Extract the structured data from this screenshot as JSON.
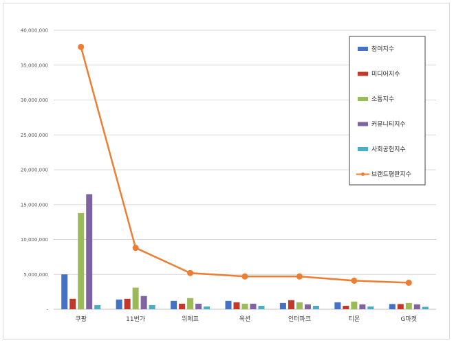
{
  "chart_data": {
    "type": "bar",
    "title": "",
    "xlabel": "",
    "ylabel": "",
    "ylim": [
      0,
      40000000
    ],
    "yticks": [
      0,
      5000000,
      10000000,
      15000000,
      20000000,
      25000000,
      30000000,
      35000000,
      40000000
    ],
    "ytick_labels": [
      "-",
      "5,000,000",
      "10,000,000",
      "15,000,000",
      "20,000,000",
      "25,000,000",
      "30,000,000",
      "35,000,000",
      "40,000,000"
    ],
    "grid": true,
    "legend_position": "top-right",
    "categories": [
      "쿠팡",
      "11번가",
      "위메프",
      "옥션",
      "인터파크",
      "티몬",
      "G마켓"
    ],
    "series": [
      {
        "name": "참여지수",
        "kind": "bar",
        "color": "#4472c4",
        "values": [
          5000000,
          1400000,
          1200000,
          1200000,
          900000,
          1000000,
          750000
        ]
      },
      {
        "name": "미디어지수",
        "kind": "bar",
        "color": "#c0392b",
        "values": [
          1500000,
          1500000,
          800000,
          1000000,
          1300000,
          500000,
          750000
        ]
      },
      {
        "name": "소통지수",
        "kind": "bar",
        "color": "#9bbb59",
        "values": [
          13800000,
          3100000,
          1600000,
          800000,
          1000000,
          1100000,
          900000
        ]
      },
      {
        "name": "커뮤니티지수",
        "kind": "bar",
        "color": "#8064a2",
        "values": [
          16500000,
          1900000,
          800000,
          800000,
          700000,
          700000,
          700000
        ]
      },
      {
        "name": "사회공헌지수",
        "kind": "bar",
        "color": "#4bacc6",
        "values": [
          600000,
          600000,
          400000,
          500000,
          500000,
          400000,
          350000
        ]
      },
      {
        "name": "브랜드평판지수",
        "kind": "line",
        "color": "#ed7d31",
        "values": [
          37600000,
          8800000,
          5200000,
          4700000,
          4700000,
          4100000,
          3800000
        ]
      }
    ]
  }
}
